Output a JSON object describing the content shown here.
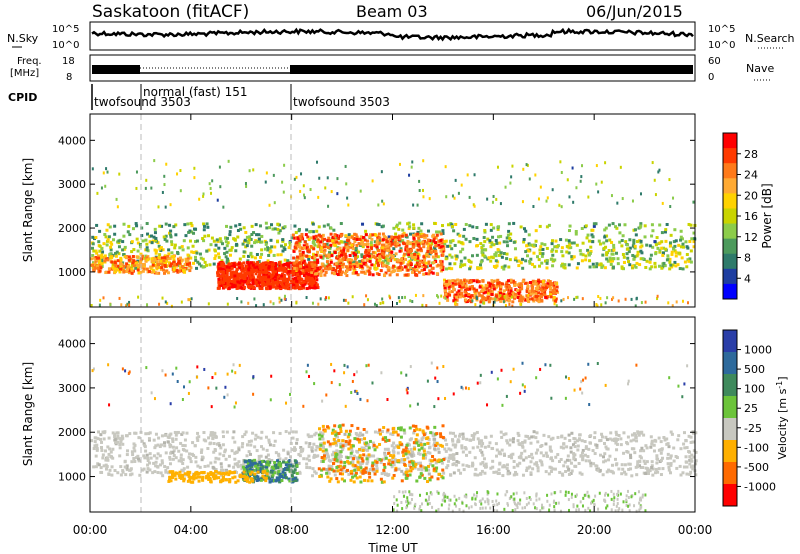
{
  "header": {
    "station": "Saskatoon (fitACF)",
    "beam": "Beam 03",
    "date": "06/Jun/2015"
  },
  "noise_panel": {
    "left_label": "N.Sky",
    "right_label": "N.Search",
    "left_ticks": [
      "10^5",
      "10^0"
    ],
    "right_ticks": [
      "10^5",
      "10^0"
    ]
  },
  "freq_panel": {
    "left_label_1": "Freq.",
    "left_label_2": "[MHz]",
    "left_ticks": [
      "18",
      "8"
    ],
    "right_label": "Nave",
    "right_ticks": [
      "60",
      "0"
    ]
  },
  "cpid_panel": {
    "label": "CPID",
    "segments": [
      {
        "start": 0,
        "end": 2,
        "name": "twofsound 3503"
      },
      {
        "start": 2,
        "end": 8,
        "name": "normal (fast) 151"
      },
      {
        "start": 8,
        "end": 24,
        "name": "twofsound 3503"
      }
    ]
  },
  "time_axis": {
    "label": "Time UT",
    "ticks": [
      "00:00",
      "04:00",
      "08:00",
      "12:00",
      "16:00",
      "20:00",
      "00:00"
    ],
    "hours": [
      0,
      4,
      8,
      12,
      16,
      20,
      24
    ]
  },
  "range_axis": {
    "label": "Slant Range [km]",
    "ticks": [
      "1000",
      "2000",
      "3000",
      "4000"
    ],
    "values": [
      1000,
      2000,
      3000,
      4000
    ],
    "range": [
      200,
      4600
    ]
  },
  "power_colorbar": {
    "label": "Power [dB]",
    "ticks": [
      "28",
      "24",
      "20",
      "16",
      "12",
      "8",
      "4"
    ],
    "colors": [
      "#ff0000",
      "#ff3a00",
      "#ff7a1a",
      "#ffaa33",
      "#ffd200",
      "#c9d400",
      "#8ccc4a",
      "#4c9a5c",
      "#2e7a6a",
      "#1e3ea0",
      "#0000ff"
    ]
  },
  "velocity_colorbar": {
    "label": "Velocity [m s",
    "label_sup": "-1",
    "label_end": "]",
    "ticks": [
      "1000",
      "500",
      "100",
      "25",
      "-25",
      "-100",
      "-500",
      "-1000"
    ],
    "colors": [
      "#2a3ea8",
      "#2e6a9c",
      "#3f8a5c",
      "#6cc43a",
      "#c8c8c0",
      "#ffb000",
      "#ff6a00",
      "#ff0000"
    ]
  },
  "chart_data": [
    {
      "type": "heatmap",
      "title": "",
      "xlabel": "Time UT",
      "ylabel": "Slant Range [km]",
      "xlim": [
        0,
        24
      ],
      "ylim": [
        200,
        4600
      ],
      "colorbar_label": "Power [dB]",
      "features": [
        {
          "hours": [
            0,
            24
          ],
          "range_km": [
            1050,
            1600
          ],
          "power_db": 14
        },
        {
          "hours": [
            5,
            9
          ],
          "range_km": [
            700,
            1200
          ],
          "power_db": 28
        },
        {
          "hours": [
            8,
            14
          ],
          "range_km": [
            900,
            2000
          ],
          "power_db": 24
        },
        {
          "hours": [
            14,
            18
          ],
          "range_km": [
            400,
            800
          ],
          "power_db": 24
        }
      ]
    },
    {
      "type": "heatmap",
      "title": "",
      "xlabel": "Time UT",
      "ylabel": "Slant Range [km]",
      "xlim": [
        0,
        24
      ],
      "ylim": [
        200,
        4600
      ],
      "colorbar_label": "Velocity [m s-1]",
      "features": [
        {
          "hours": [
            0,
            24
          ],
          "range_km": [
            1000,
            2000
          ],
          "velocity_ms": 0
        },
        {
          "hours": [
            6,
            8
          ],
          "range_km": [
            900,
            1300
          ],
          "velocity_ms": 100
        },
        {
          "hours": [
            9,
            14
          ],
          "range_km": [
            900,
            2200
          ],
          "velocity_ms": -200
        }
      ]
    }
  ]
}
